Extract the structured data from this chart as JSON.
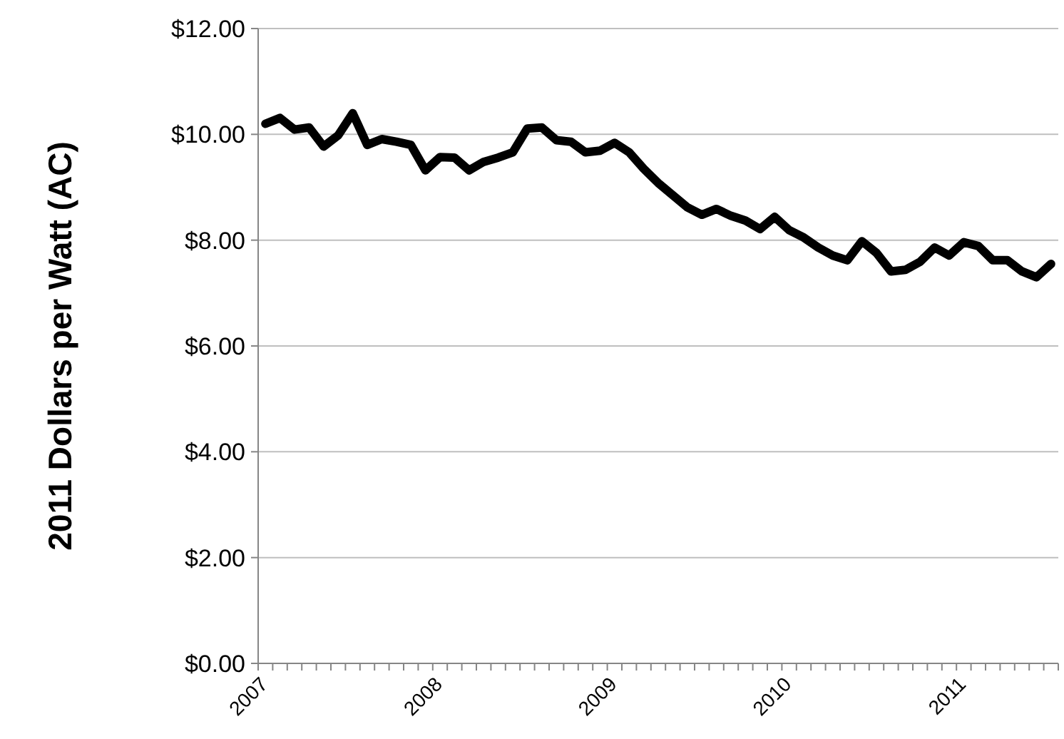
{
  "chart_data": {
    "type": "line",
    "ylabel": "2011 Dollars per Watt (AC)",
    "categories": [
      "2007",
      null,
      null,
      null,
      null,
      null,
      null,
      null,
      null,
      null,
      null,
      null,
      "2008",
      null,
      null,
      null,
      null,
      null,
      null,
      null,
      null,
      null,
      null,
      null,
      "2009",
      null,
      null,
      null,
      null,
      null,
      null,
      null,
      null,
      null,
      null,
      null,
      "2010",
      null,
      null,
      null,
      null,
      null,
      null,
      null,
      null,
      null,
      null,
      null,
      "2011",
      null,
      null,
      null,
      null,
      null,
      null
    ],
    "series": [
      {
        "color": "#000000",
        "values": [
          10.2,
          10.31,
          10.09,
          10.13,
          9.77,
          9.98,
          10.4,
          9.8,
          9.91,
          9.86,
          9.8,
          9.32,
          9.57,
          9.56,
          9.32,
          9.48,
          9.56,
          9.66,
          10.11,
          10.13,
          9.89,
          9.86,
          9.66,
          9.69,
          9.84,
          9.66,
          9.35,
          9.08,
          8.85,
          8.62,
          8.48,
          8.59,
          8.46,
          8.37,
          8.21,
          8.44,
          8.19,
          8.05,
          7.86,
          7.71,
          7.62,
          7.98,
          7.76,
          7.41,
          7.44,
          7.59,
          7.86,
          7.71,
          7.96,
          7.89,
          7.62,
          7.62,
          7.41,
          7.3,
          7.55
        ]
      }
    ],
    "ylim": [
      0,
      12
    ],
    "yticks": [
      {
        "value": 0,
        "label": "$0.00"
      },
      {
        "value": 2,
        "label": "$2.00"
      },
      {
        "value": 4,
        "label": "$4.00"
      },
      {
        "value": 6,
        "label": "$6.00"
      },
      {
        "value": 8,
        "label": "$8.00"
      },
      {
        "value": 10,
        "label": "$10.00"
      },
      {
        "value": 12,
        "label": "$12.00"
      }
    ],
    "grid": "y",
    "marker": "none",
    "line_style": "solid"
  }
}
